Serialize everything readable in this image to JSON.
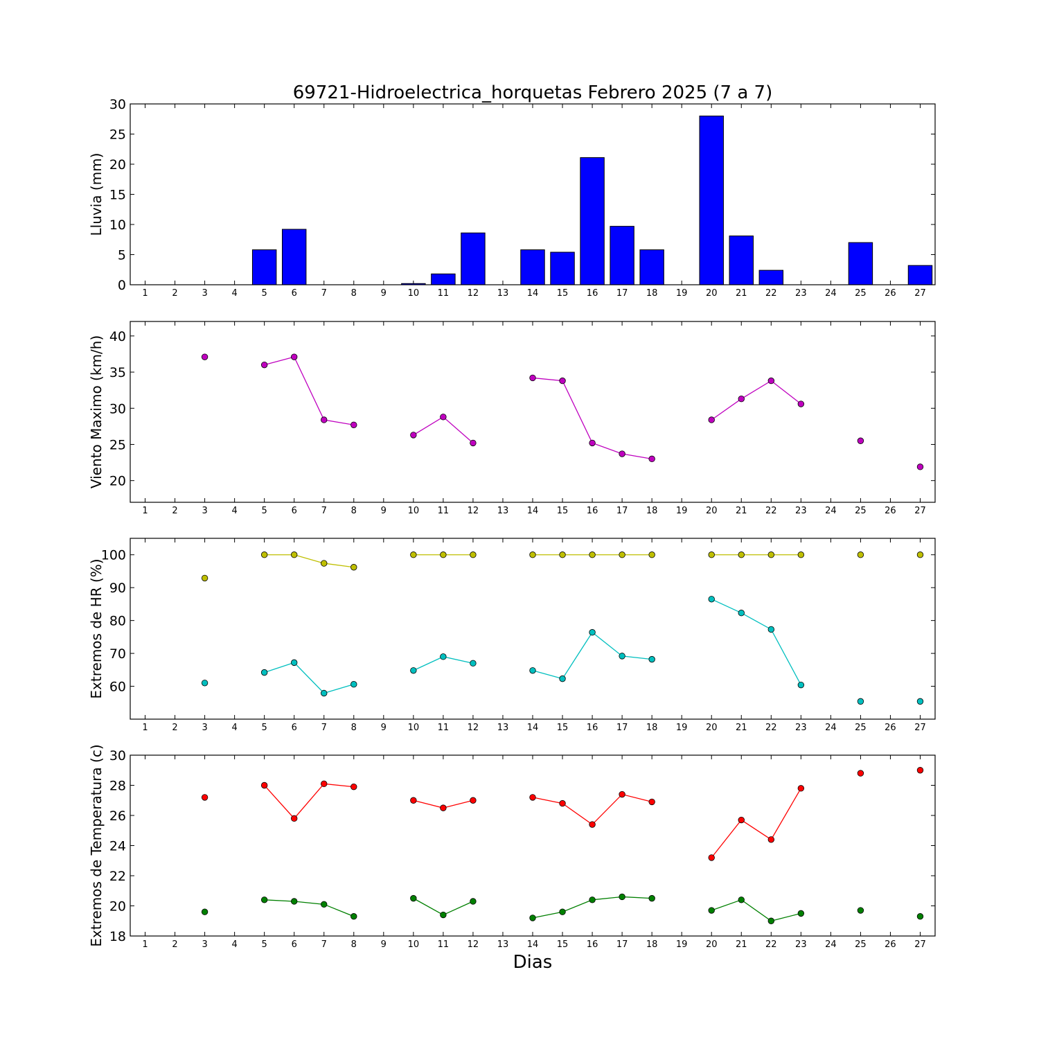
{
  "title": "69721-Hidroelectrica_horquetas Febrero 2025  (7 a 7)",
  "xlabel": "Dias",
  "x_ticks": [
    1,
    2,
    3,
    4,
    5,
    6,
    7,
    8,
    9,
    10,
    11,
    12,
    13,
    14,
    15,
    16,
    17,
    18,
    19,
    20,
    21,
    22,
    23,
    24,
    25,
    26,
    27
  ],
  "chart_data": [
    {
      "type": "bar",
      "ylabel": "Lluvia (mm)",
      "ylim": [
        0,
        30
      ],
      "yticks": [
        0,
        5,
        10,
        15,
        20,
        25,
        30
      ],
      "xlim": [
        0.5,
        27.5
      ],
      "series": [
        {
          "color": "#0000ff",
          "points": [
            [
              1,
              0
            ],
            [
              2,
              0
            ],
            [
              3,
              0
            ],
            [
              4,
              0
            ],
            [
              5,
              5.8
            ],
            [
              6,
              9.2
            ],
            [
              7,
              0
            ],
            [
              8,
              0
            ],
            [
              9,
              0
            ],
            [
              10,
              0.2
            ],
            [
              11,
              1.8
            ],
            [
              12,
              8.6
            ],
            [
              13,
              0
            ],
            [
              14,
              5.8
            ],
            [
              15,
              5.4
            ],
            [
              16,
              21.1
            ],
            [
              17,
              9.7
            ],
            [
              18,
              5.8
            ],
            [
              19,
              0
            ],
            [
              20,
              28.0
            ],
            [
              21,
              8.1
            ],
            [
              22,
              2.4
            ],
            [
              23,
              0
            ],
            [
              24,
              0
            ],
            [
              25,
              7.0
            ],
            [
              26,
              0
            ],
            [
              27,
              3.2
            ]
          ]
        }
      ]
    },
    {
      "type": "line",
      "ylabel": "Viento Maximo (km/h)",
      "ylim": [
        17,
        42
      ],
      "yticks": [
        20,
        25,
        30,
        35,
        40
      ],
      "xlim": [
        0.5,
        27.5
      ],
      "series": [
        {
          "color": "#bf00bf",
          "segments": [
            [
              [
                3,
                37.1
              ]
            ],
            [
              [
                5,
                36.0
              ],
              [
                6,
                37.1
              ],
              [
                7,
                28.4
              ],
              [
                8,
                27.7
              ]
            ],
            [
              [
                10,
                26.3
              ],
              [
                11,
                28.8
              ],
              [
                12,
                25.2
              ]
            ],
            [
              [
                14,
                34.2
              ],
              [
                15,
                33.8
              ],
              [
                16,
                25.2
              ],
              [
                17,
                23.7
              ],
              [
                18,
                23.0
              ]
            ],
            [
              [
                20,
                28.4
              ],
              [
                21,
                31.3
              ],
              [
                22,
                33.8
              ],
              [
                23,
                30.6
              ]
            ],
            [
              [
                25,
                25.5
              ]
            ],
            [
              [
                27,
                21.9
              ]
            ]
          ]
        }
      ]
    },
    {
      "type": "line",
      "ylabel": "Extremos de HR (%)",
      "ylim": [
        50,
        105
      ],
      "yticks": [
        60,
        70,
        80,
        90,
        100
      ],
      "xlim": [
        0.5,
        27.5
      ],
      "series": [
        {
          "color": "#bfbf00",
          "segments": [
            [
              [
                3,
                92.9
              ]
            ],
            [
              [
                5,
                100
              ],
              [
                6,
                100
              ],
              [
                7,
                97.4
              ],
              [
                8,
                96.2
              ]
            ],
            [
              [
                10,
                100
              ],
              [
                11,
                100
              ],
              [
                12,
                100
              ]
            ],
            [
              [
                14,
                100
              ],
              [
                15,
                100
              ],
              [
                16,
                100
              ],
              [
                17,
                100
              ],
              [
                18,
                100
              ]
            ],
            [
              [
                20,
                100
              ],
              [
                21,
                100
              ],
              [
                22,
                100
              ],
              [
                23,
                100
              ]
            ],
            [
              [
                25,
                100
              ]
            ],
            [
              [
                27,
                100
              ]
            ]
          ]
        },
        {
          "color": "#00bfbf",
          "segments": [
            [
              [
                3,
                61.0
              ]
            ],
            [
              [
                5,
                64.2
              ],
              [
                6,
                67.2
              ],
              [
                7,
                57.9
              ],
              [
                8,
                60.6
              ]
            ],
            [
              [
                10,
                64.8
              ],
              [
                11,
                69.0
              ],
              [
                12,
                67.0
              ]
            ],
            [
              [
                14,
                64.8
              ],
              [
                15,
                62.3
              ],
              [
                16,
                76.4
              ],
              [
                17,
                69.2
              ],
              [
                18,
                68.2
              ]
            ],
            [
              [
                20,
                86.5
              ],
              [
                21,
                82.3
              ],
              [
                22,
                77.3
              ],
              [
                23,
                60.4
              ]
            ],
            [
              [
                25,
                55.4
              ]
            ],
            [
              [
                27,
                55.4
              ]
            ]
          ]
        }
      ]
    },
    {
      "type": "line",
      "ylabel": "Extremos de Temperatura (c)",
      "ylim": [
        18,
        30
      ],
      "yticks": [
        18,
        20,
        22,
        24,
        26,
        28,
        30
      ],
      "xlim": [
        0.5,
        27.5
      ],
      "series": [
        {
          "color": "#ff0000",
          "segments": [
            [
              [
                3,
                27.2
              ]
            ],
            [
              [
                5,
                28.0
              ],
              [
                6,
                25.8
              ],
              [
                7,
                28.1
              ],
              [
                8,
                27.9
              ]
            ],
            [
              [
                10,
                27.0
              ],
              [
                11,
                26.5
              ],
              [
                12,
                27.0
              ]
            ],
            [
              [
                14,
                27.2
              ],
              [
                15,
                26.8
              ],
              [
                16,
                25.4
              ],
              [
                17,
                27.4
              ],
              [
                18,
                26.9
              ]
            ],
            [
              [
                20,
                23.2
              ],
              [
                21,
                25.7
              ],
              [
                22,
                24.4
              ],
              [
                23,
                27.8
              ]
            ],
            [
              [
                25,
                28.8
              ]
            ],
            [
              [
                27,
                29.0
              ]
            ]
          ]
        },
        {
          "color": "#008000",
          "segments": [
            [
              [
                3,
                19.6
              ]
            ],
            [
              [
                5,
                20.4
              ],
              [
                6,
                20.3
              ],
              [
                7,
                20.1
              ],
              [
                8,
                19.3
              ]
            ],
            [
              [
                10,
                20.5
              ],
              [
                11,
                19.4
              ],
              [
                12,
                20.3
              ]
            ],
            [
              [
                14,
                19.2
              ],
              [
                15,
                19.6
              ],
              [
                16,
                20.4
              ],
              [
                17,
                20.6
              ],
              [
                18,
                20.5
              ]
            ],
            [
              [
                20,
                19.7
              ],
              [
                21,
                20.4
              ],
              [
                22,
                19.0
              ],
              [
                23,
                19.5
              ]
            ],
            [
              [
                25,
                19.7
              ]
            ],
            [
              [
                27,
                19.3
              ]
            ]
          ]
        }
      ]
    }
  ]
}
